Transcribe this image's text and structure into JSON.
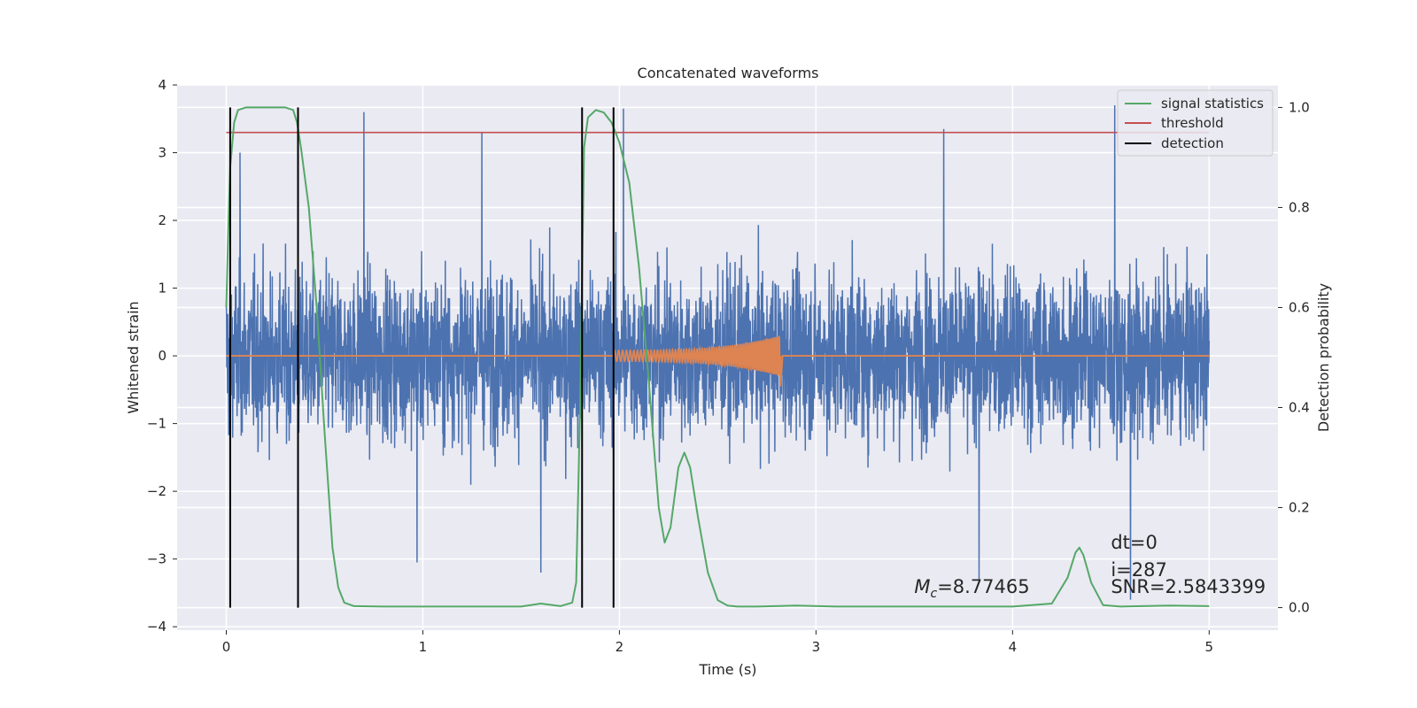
{
  "chart_data": {
    "type": "line",
    "title": "Concatenated waveforms",
    "xlabel": "Time (s)",
    "ylabel": "Whitened strain",
    "ylabel_right": "Detection probability",
    "xlim": [
      -0.25,
      5.35
    ],
    "ylim": [
      -4.05,
      4.0
    ],
    "ylim_right": [
      -0.045,
      1.045
    ],
    "x_ticks": [
      0,
      1,
      2,
      3,
      4,
      5
    ],
    "y_ticks": [
      -4,
      -3,
      -2,
      -1,
      0,
      1,
      2,
      3,
      4
    ],
    "y_ticks_right": [
      0.0,
      0.2,
      0.4,
      0.6,
      0.8,
      1.0
    ],
    "x_tick_labels": [
      "0",
      "1",
      "2",
      "3",
      "4",
      "5"
    ],
    "y_tick_labels": [
      "−4",
      "−3",
      "−2",
      "−1",
      "0",
      "1",
      "2",
      "3",
      "4"
    ],
    "y_tick_labels_right": [
      "0.0",
      "0.2",
      "0.4",
      "0.6",
      "0.8",
      "1.0"
    ],
    "grid": true,
    "legend_position": "top-right",
    "legend": [
      "signal statistics",
      "threshold",
      "detection"
    ],
    "colors": {
      "strain": "#4c72b0",
      "template": "#dd8452",
      "signal_statistics": "#55a868",
      "threshold": "#c44e52",
      "detection": "#000000",
      "background": "#eaeaf2"
    },
    "series": [
      {
        "name": "signal statistics",
        "axis": "right",
        "x": [
          0.0,
          0.01,
          0.02,
          0.04,
          0.06,
          0.1,
          0.2,
          0.3,
          0.34,
          0.36,
          0.38,
          0.42,
          0.46,
          0.5,
          0.54,
          0.57,
          0.6,
          0.65,
          0.8,
          1.0,
          1.2,
          1.5,
          1.6,
          1.7,
          1.76,
          1.78,
          1.8,
          1.82,
          1.84,
          1.88,
          1.92,
          1.96,
          2.0,
          2.05,
          2.1,
          2.15,
          2.2,
          2.23,
          2.26,
          2.3,
          2.33,
          2.36,
          2.4,
          2.45,
          2.5,
          2.55,
          2.6,
          2.7,
          2.9,
          3.1,
          3.5,
          4.0,
          4.2,
          4.28,
          4.32,
          4.34,
          4.36,
          4.4,
          4.46,
          4.55,
          4.8,
          5.0
        ],
        "values": [
          0.6,
          0.75,
          0.88,
          0.97,
          0.995,
          1.0,
          1.0,
          1.0,
          0.995,
          0.97,
          0.92,
          0.8,
          0.6,
          0.35,
          0.12,
          0.04,
          0.01,
          0.003,
          0.002,
          0.002,
          0.002,
          0.002,
          0.008,
          0.003,
          0.01,
          0.05,
          0.4,
          0.92,
          0.98,
          0.995,
          0.99,
          0.97,
          0.93,
          0.85,
          0.68,
          0.45,
          0.2,
          0.13,
          0.16,
          0.28,
          0.31,
          0.28,
          0.18,
          0.07,
          0.015,
          0.004,
          0.002,
          0.002,
          0.004,
          0.002,
          0.002,
          0.002,
          0.008,
          0.06,
          0.11,
          0.12,
          0.105,
          0.05,
          0.005,
          0.002,
          0.004,
          0.003
        ]
      },
      {
        "name": "threshold",
        "axis": "right",
        "x": [
          0.0,
          5.0
        ],
        "values": [
          0.95,
          0.95
        ]
      }
    ],
    "detections_x": [
      0.02,
      0.365,
      1.81,
      1.97
    ],
    "detections_y_range": [
      0.0,
      1.0
    ],
    "strain_range": [
      0.0,
      5.0
    ],
    "strain_spikes": [
      {
        "x": 0.07,
        "value": 3.0
      },
      {
        "x": 0.7,
        "value": 3.6
      },
      {
        "x": 0.97,
        "value": -3.05
      },
      {
        "x": 1.3,
        "value": 3.3
      },
      {
        "x": 1.6,
        "value": -3.2
      },
      {
        "x": 2.02,
        "value": 3.65
      },
      {
        "x": 3.65,
        "value": 3.35
      },
      {
        "x": 3.83,
        "value": -3.3
      },
      {
        "x": 4.52,
        "value": 3.7
      },
      {
        "x": 4.6,
        "value": -3.6
      }
    ],
    "template_chirp": {
      "start": 1.97,
      "end": 2.82,
      "max_amplitude": 0.3,
      "min_value": -0.45
    },
    "annotations": [
      {
        "text_prefix": "M",
        "text_sub": "c",
        "text_value": "=8.77465",
        "x": 3.5,
        "y": -3.5
      },
      {
        "text": "dt=0",
        "x": 4.5,
        "y": -2.85
      },
      {
        "text": "i=287",
        "x": 4.5,
        "y": -3.25
      },
      {
        "text": "SNR=2.5843399",
        "x": 4.5,
        "y": -3.5
      }
    ]
  }
}
